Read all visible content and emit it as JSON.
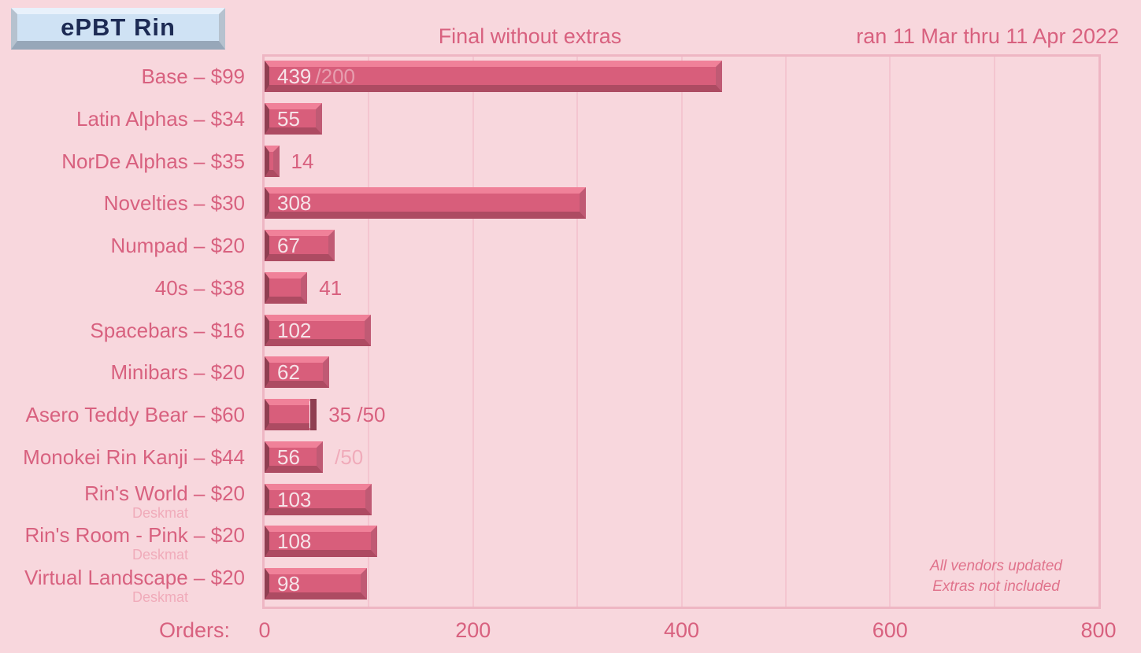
{
  "header": {
    "logo": "ePBT Rin",
    "title": "Final without extras",
    "date_range": "ran 11 Mar thru 11 Apr 2022"
  },
  "axis": {
    "label": "Orders:",
    "ticks": [
      "0",
      "200",
      "400",
      "600",
      "800"
    ],
    "max": 800,
    "gridline_every": 100
  },
  "footnote": {
    "line1": "All vendors updated",
    "line2": "Extras not included"
  },
  "colors": {
    "background": "#f8d7dd",
    "text_rose": "#d8617f",
    "text_faint": "#f0abba",
    "footnote_color": "#e0738c",
    "bar_face": "#d85e7b",
    "bar_top": "#f08199",
    "bar_bottom": "#ad4b62",
    "bar_left": "#8f3f51",
    "bar_right": "#c05a74",
    "bar_text": "#f6e3e8",
    "unfilled": "#fdf3f5",
    "unfilled_edge_top": "#f2a2b3",
    "unfilled_edge_bottom": "#e18da1",
    "grid_border": "#eeb6c3",
    "gridline": "#f4c5d0",
    "logo_face": "#cfe2f4",
    "logo_top": "#e8f1fb",
    "logo_side": "#b6c2cf",
    "logo_bottom": "#97a7b9",
    "logo_text": "#1d2b54"
  },
  "chart_data": {
    "type": "bar",
    "orientation": "horizontal",
    "title": "Final without extras",
    "xlabel": "Orders:",
    "xlim": [
      0,
      800
    ],
    "grid": true,
    "items": [
      {
        "label": "Base – $99",
        "sublabel": null,
        "value": 439,
        "goal": 200,
        "value_label": "439",
        "goal_label": "/200",
        "value_placement": "inside",
        "goal_display": "inside-faint",
        "show_unfilled": false
      },
      {
        "label": "Latin Alphas – $34",
        "sublabel": null,
        "value": 55,
        "goal": null,
        "value_label": "55",
        "goal_label": null,
        "value_placement": "inside",
        "goal_display": null,
        "show_unfilled": false
      },
      {
        "label": "NorDe Alphas – $35",
        "sublabel": null,
        "value": 14,
        "goal": null,
        "value_label": "14",
        "goal_label": null,
        "value_placement": "outside",
        "goal_display": null,
        "show_unfilled": false
      },
      {
        "label": "Novelties – $30",
        "sublabel": null,
        "value": 308,
        "goal": null,
        "value_label": "308",
        "goal_label": null,
        "value_placement": "inside",
        "goal_display": null,
        "show_unfilled": false
      },
      {
        "label": "Numpad – $20",
        "sublabel": null,
        "value": 67,
        "goal": null,
        "value_label": "67",
        "goal_label": null,
        "value_placement": "inside",
        "goal_display": null,
        "show_unfilled": false
      },
      {
        "label": "40s – $38",
        "sublabel": null,
        "value": 41,
        "goal": null,
        "value_label": "41",
        "goal_label": null,
        "value_placement": "outside",
        "goal_display": null,
        "show_unfilled": false
      },
      {
        "label": "Spacebars – $16",
        "sublabel": null,
        "value": 102,
        "goal": null,
        "value_label": "102",
        "goal_label": null,
        "value_placement": "inside",
        "goal_display": null,
        "show_unfilled": false
      },
      {
        "label": "Minibars – $20",
        "sublabel": null,
        "value": 62,
        "goal": null,
        "value_label": "62",
        "goal_label": null,
        "value_placement": "inside",
        "goal_display": null,
        "show_unfilled": false
      },
      {
        "label": "Asero Teddy Bear – $60",
        "sublabel": null,
        "value": 35,
        "goal": 50,
        "value_label": "35",
        "goal_label": "/50",
        "value_placement": "outside",
        "goal_display": "outside-rose",
        "show_unfilled": true
      },
      {
        "label": "Monokei Rin Kanji – $44",
        "sublabel": null,
        "value": 56,
        "goal": 50,
        "value_label": "56",
        "goal_label": "/50",
        "value_placement": "inside",
        "goal_display": "outside-faint",
        "show_unfilled": false
      },
      {
        "label": "Rin's World – $20",
        "sublabel": "Deskmat",
        "value": 103,
        "goal": null,
        "value_label": "103",
        "goal_label": null,
        "value_placement": "inside",
        "goal_display": null,
        "show_unfilled": false
      },
      {
        "label": "Rin's Room - Pink – $20",
        "sublabel": "Deskmat",
        "value": 108,
        "goal": null,
        "value_label": "108",
        "goal_label": null,
        "value_placement": "inside",
        "goal_display": null,
        "show_unfilled": false
      },
      {
        "label": "Virtual Landscape – $20",
        "sublabel": "Deskmat",
        "value": 98,
        "goal": null,
        "value_label": "98",
        "goal_label": null,
        "value_placement": "inside",
        "goal_display": null,
        "show_unfilled": false
      }
    ]
  }
}
